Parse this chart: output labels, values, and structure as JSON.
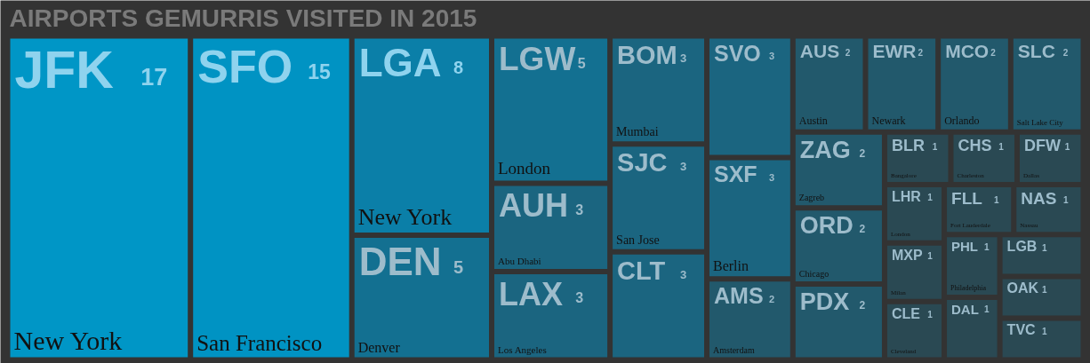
{
  "chart_data": {
    "type": "other",
    "title": "AIRPORTS GEMURRIS VISITED IN 2015",
    "categories": [
      "JFK",
      "SFO",
      "LGA",
      "DEN",
      "LGW",
      "AUH",
      "LAX",
      "BOM",
      "SJC",
      "CLT",
      "SVO",
      "SXF",
      "AMS",
      "AUS",
      "EWR",
      "MCO",
      "SLC",
      "ZAG",
      "ORD",
      "PDX",
      "BLR",
      "CHS",
      "DFW",
      "LHR",
      "MXP",
      "CLE",
      "FLL",
      "NAS",
      "PHL",
      "DAL",
      "LGB",
      "OAK",
      "TVC"
    ],
    "values": [
      17,
      15,
      8,
      5,
      5,
      3,
      3,
      3,
      3,
      3,
      3,
      3,
      2,
      2,
      2,
      2,
      2,
      2,
      2,
      2,
      1,
      1,
      1,
      1,
      1,
      1,
      1,
      1,
      1,
      1,
      1,
      1,
      1
    ],
    "colors": [
      "#0096c6",
      "#0093c3",
      "#0b7fa8",
      "#137091",
      "#137091",
      "#1b6580",
      "#1b6580",
      "#1b6580",
      "#1b6580",
      "#1b6580",
      "#1b6580",
      "#1b6580",
      "#22596c",
      "#22596c",
      "#22596c",
      "#22596c",
      "#22596c",
      "#22596c",
      "#22596c",
      "#22596c",
      "#2a4953",
      "#2a4953",
      "#2a4953",
      "#2a4953",
      "#2a4953",
      "#2a4953",
      "#2a4953",
      "#2a4953",
      "#2a4953",
      "#2a4953",
      "#2a4953",
      "#2a4953",
      "#2a4953"
    ],
    "data_labels": true,
    "annotations": [
      {
        "text": "New York",
        "x": "JFK"
      },
      {
        "text": "San Francisco",
        "x": "SFO"
      },
      {
        "text": "New York",
        "x": "LGA"
      },
      {
        "text": "Denver",
        "x": "DEN"
      },
      {
        "text": "London",
        "x": "LGW"
      },
      {
        "text": "Abu Dhabi",
        "x": "AUH"
      },
      {
        "text": "Los Angeles",
        "x": "LAX"
      },
      {
        "text": "Mumbai",
        "x": "BOM"
      },
      {
        "text": "San Jose",
        "x": "SJC"
      },
      {
        "text": "Berlin",
        "x": "SXF"
      },
      {
        "text": "Amsterdam",
        "x": "AMS"
      },
      {
        "text": "Austin",
        "x": "AUS"
      },
      {
        "text": "Newark",
        "x": "EWR"
      },
      {
        "text": "Orlando",
        "x": "MCO"
      },
      {
        "text": "Salt Lake City",
        "x": "SLC"
      },
      {
        "text": "Zagreb",
        "x": "ZAG"
      },
      {
        "text": "Chicago",
        "x": "ORD"
      },
      {
        "text": "Bangalore",
        "x": "BLR"
      },
      {
        "text": "Charleston",
        "x": "CHS"
      },
      {
        "text": "Dallas",
        "x": "DFW"
      },
      {
        "text": "London",
        "x": "LHR"
      },
      {
        "text": "Milan",
        "x": "MXP"
      },
      {
        "text": "Cleveland",
        "x": "CLE"
      },
      {
        "text": "Fort Lauderdale",
        "x": "FLL"
      },
      {
        "text": "Nassau",
        "x": "NAS"
      },
      {
        "text": "Philadelphia",
        "x": "PHL"
      }
    ]
  }
}
